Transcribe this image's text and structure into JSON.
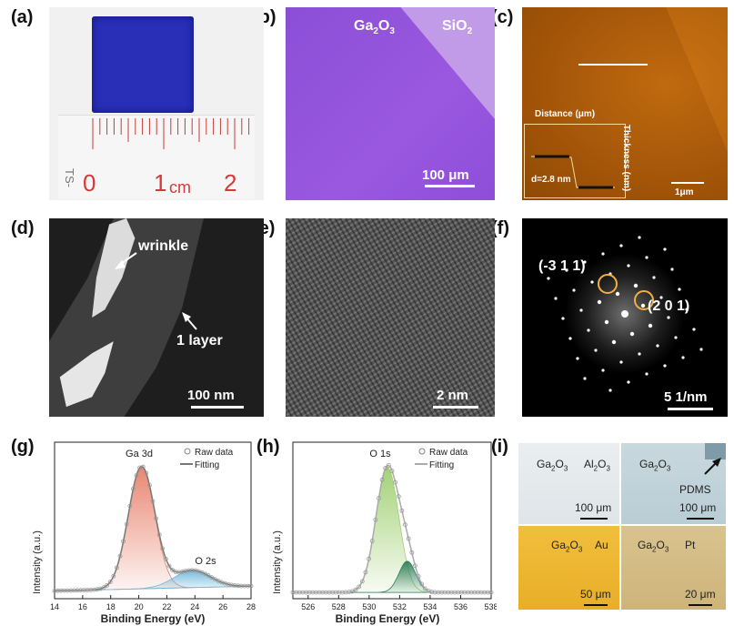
{
  "panels": {
    "a": {
      "label": "(a)",
      "ruler_zero": "0",
      "ruler_one": "1",
      "ruler_unit": "cm",
      "ruler_two": "2",
      "ruler_side": "TS-"
    },
    "b": {
      "label": "(b)",
      "ga2o3": "Ga",
      "ga2o3_sub": "2",
      "ga2o3_o": "O",
      "ga2o3_sub2": "3",
      "sio2": "SiO",
      "sio2_sub": "2",
      "scale": "100 μm"
    },
    "c": {
      "label": "(c)",
      "inset_x": "Distance (μm)",
      "inset_y": "Thickness (nm)",
      "inset_d": "d=2.8 nm",
      "scale": "1μm"
    },
    "d": {
      "label": "(d)",
      "wrinkle": "wrinkle",
      "layer": "1 layer",
      "scale": "100 nm"
    },
    "e": {
      "label": "(e)",
      "scale": "2 nm"
    },
    "f": {
      "label": "(f)",
      "spot1": "(-3 1 1)",
      "spot2": "(2 0 1)",
      "scale": "5 1/nm"
    },
    "g": {
      "label": "(g)",
      "xlabel": "Binding Energy (eV)",
      "ylabel": "Intensity (a.u.)",
      "peak1": "Ga 3d",
      "peak2": "O 2s",
      "legend_raw": "Raw data",
      "legend_fit": "Fitting"
    },
    "h": {
      "label": "(h)",
      "xlabel": "Binding Energy (eV)",
      "ylabel": "Intensity (a.u.)",
      "peak1": "O 1s",
      "legend_raw": "Raw data",
      "legend_fit": "Fitting"
    },
    "i": {
      "label": "(i)",
      "q1_left": "Ga2O3",
      "q1_right": "Al2O3",
      "q1_scale": "100 μm",
      "q2_left": "Ga2O3",
      "q2_right": "PDMS",
      "q2_scale": "100 μm",
      "q3_left": "Ga2O3",
      "q3_right": "Au",
      "q3_scale": "50 μm",
      "q4_left": "Ga2O3",
      "q4_right": "Pt",
      "q4_scale": "20 μm"
    }
  },
  "chart_data": [
    {
      "type": "line",
      "title": "",
      "xlabel": "Binding Energy (eV)",
      "ylabel": "Intensity (a.u.)",
      "xlim": [
        14,
        28
      ],
      "x_ticks": [
        14,
        16,
        18,
        20,
        22,
        24,
        26,
        28
      ],
      "peaks": [
        {
          "label": "Ga 3d",
          "center": 20.2
        },
        {
          "label": "O 2s",
          "center": 23.8
        }
      ],
      "series": [
        {
          "name": "Raw data"
        },
        {
          "name": "Fitting"
        }
      ],
      "colors": {
        "peak1": "#e8806a",
        "peak2": "#6fb8dc",
        "fit": "#777777"
      }
    },
    {
      "type": "line",
      "title": "",
      "xlabel": "Binding Energy (eV)",
      "ylabel": "Intensity (a.u.)",
      "xlim": [
        525,
        538
      ],
      "x_ticks": [
        526,
        528,
        530,
        532,
        534,
        536,
        538
      ],
      "peaks": [
        {
          "label": "O 1s",
          "center": 531.2
        },
        {
          "center": 532.5
        }
      ],
      "series": [
        {
          "name": "Raw data"
        },
        {
          "name": "Fitting"
        }
      ],
      "colors": {
        "peak1": "#9fcf70",
        "peak2": "#2e7d5a",
        "fit": "#aaaaaa"
      }
    }
  ]
}
